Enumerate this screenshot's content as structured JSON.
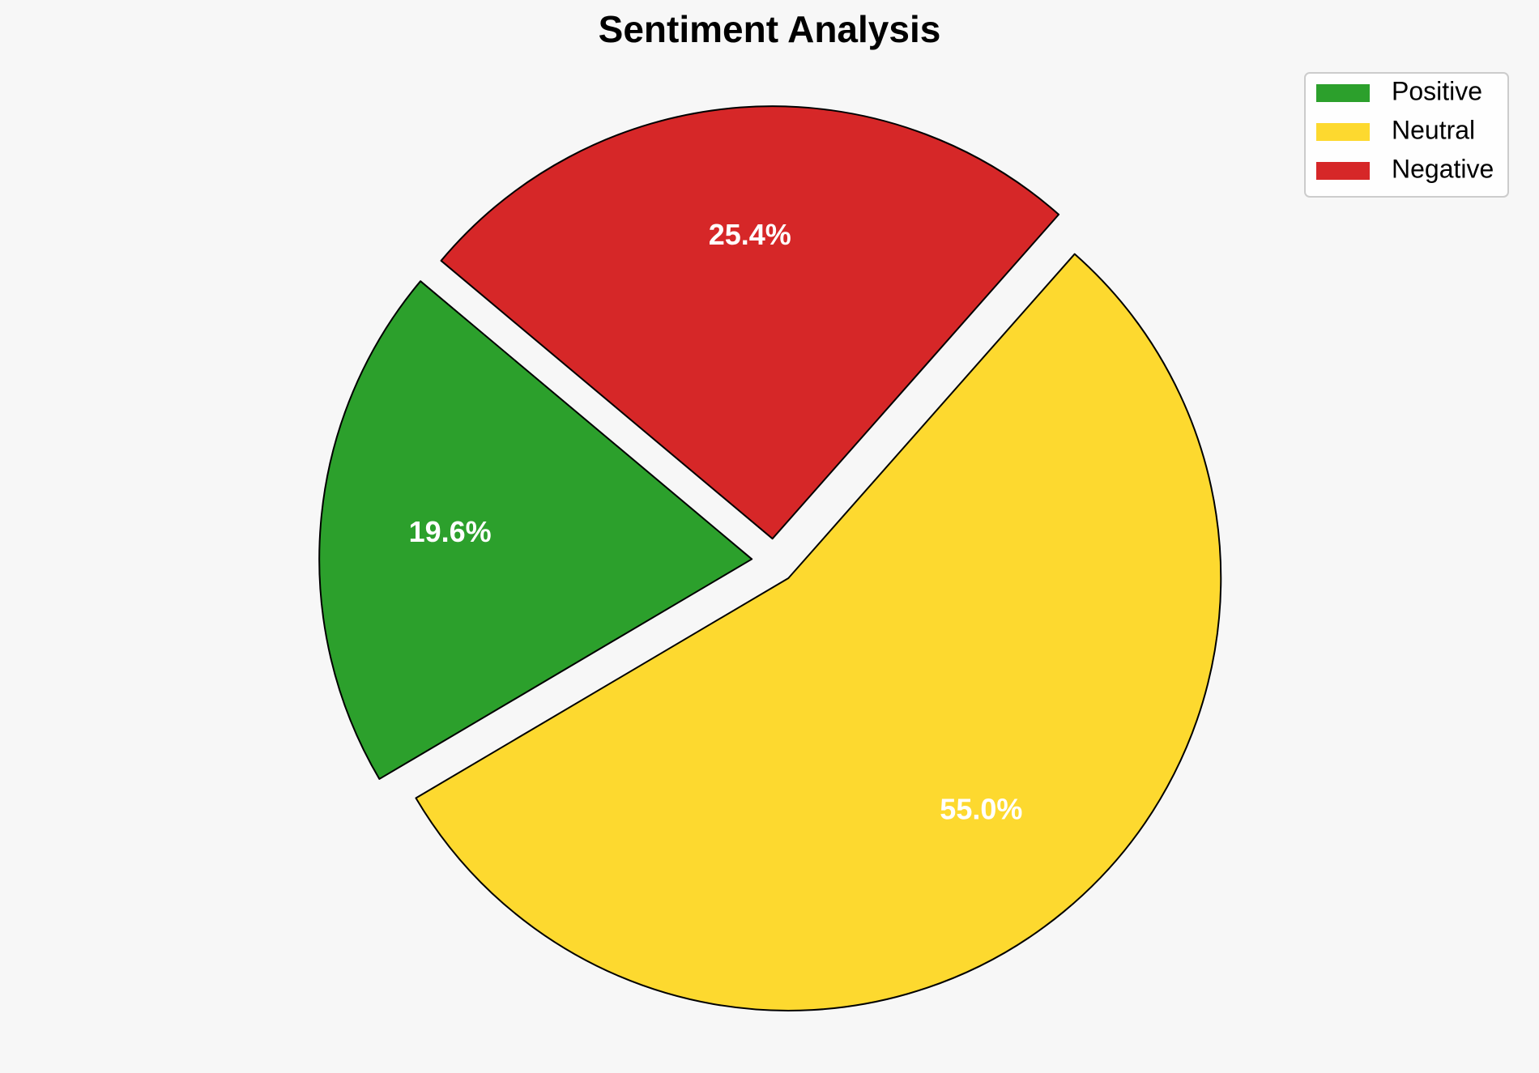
{
  "chart_data": {
    "type": "pie",
    "title": "Sentiment Analysis",
    "categories": [
      "Positive",
      "Neutral",
      "Negative"
    ],
    "values": [
      19.6,
      55.0,
      25.4
    ],
    "value_labels": [
      "19.6%",
      "55.0%",
      "25.4%"
    ],
    "colors": [
      "#2ca02c",
      "#fdd92f",
      "#d62728"
    ],
    "legend": "upper right"
  }
}
